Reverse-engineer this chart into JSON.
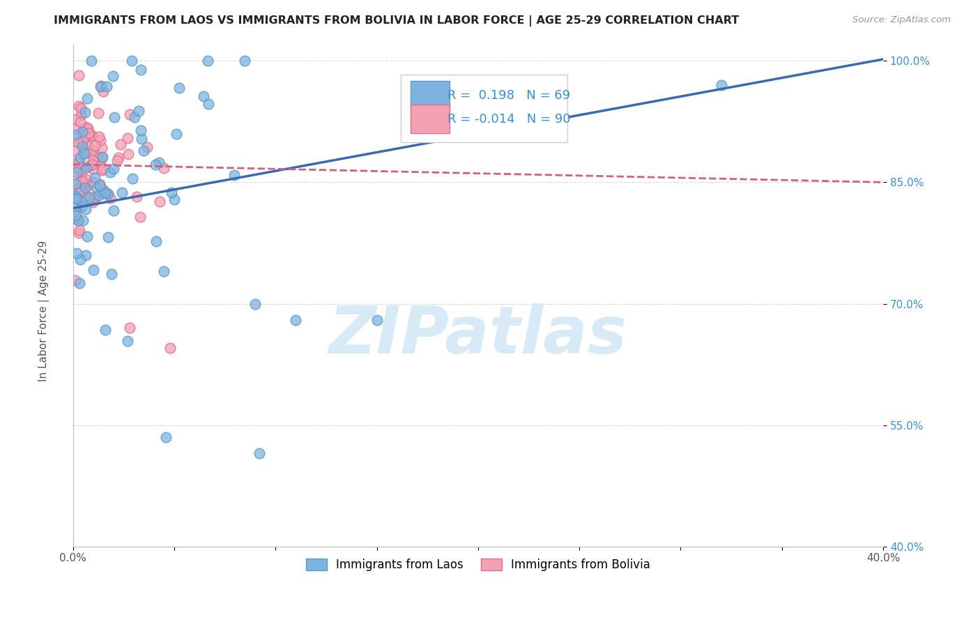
{
  "title": "IMMIGRANTS FROM LAOS VS IMMIGRANTS FROM BOLIVIA IN LABOR FORCE | AGE 25-29 CORRELATION CHART",
  "source": "Source: ZipAtlas.com",
  "ylabel": "In Labor Force | Age 25-29",
  "xlim": [
    0.0,
    0.4
  ],
  "ylim": [
    0.4,
    1.02
  ],
  "xticks": [
    0.0,
    0.05,
    0.1,
    0.15,
    0.2,
    0.25,
    0.3,
    0.35,
    0.4
  ],
  "yticks": [
    0.4,
    0.55,
    0.7,
    0.85,
    1.0
  ],
  "laos_color": "#7EB3E0",
  "laos_edge_color": "#5B9BC8",
  "bolivia_color": "#F4A0B5",
  "bolivia_edge_color": "#E0708A",
  "laos_R": 0.198,
  "laos_N": 69,
  "bolivia_R": -0.014,
  "bolivia_N": 90,
  "trend_laos_color": "#3A6BB0",
  "trend_bolivia_color": "#D06080",
  "watermark_color": "#D8EAF5",
  "legend_label_laos": "Immigrants from Laos",
  "legend_label_bolivia": "Immigrants from Bolivia",
  "laos_trend_y0": 0.818,
  "laos_trend_y1": 1.002,
  "bolivia_trend_y0": 0.872,
  "bolivia_trend_y1": 0.85
}
